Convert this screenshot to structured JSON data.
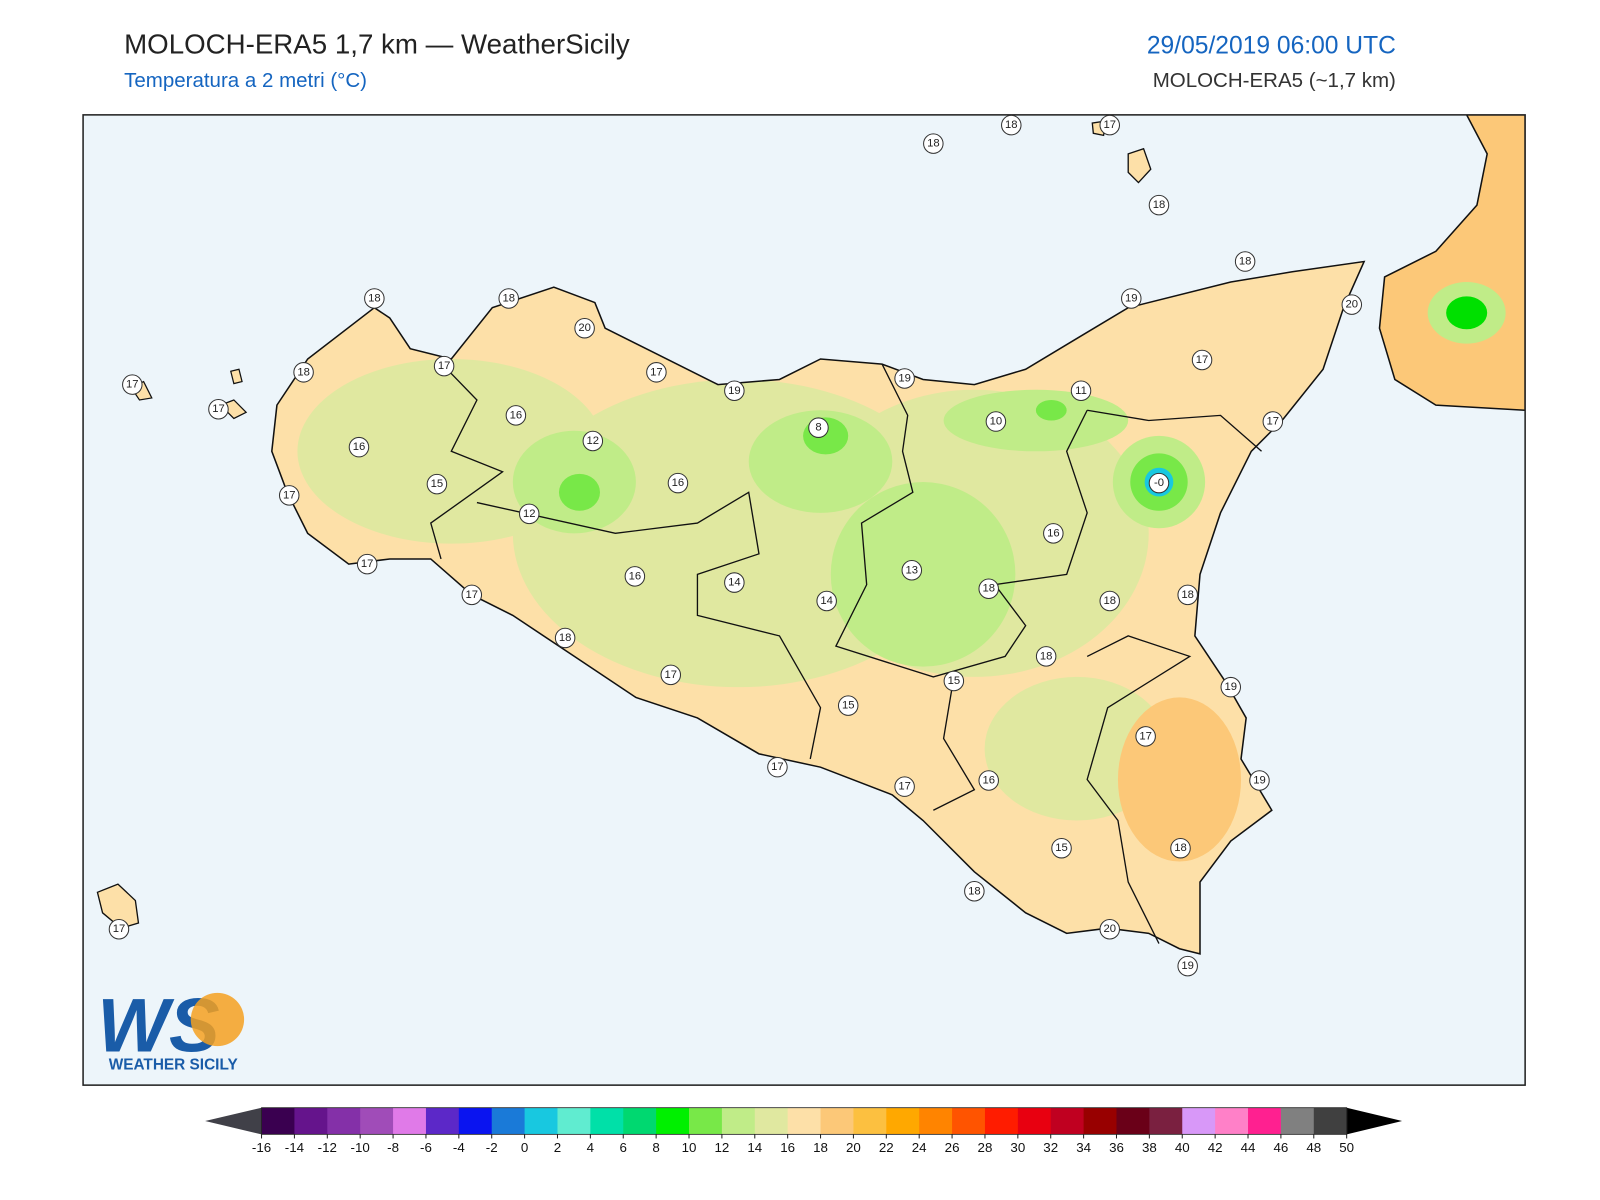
{
  "header": {
    "title": "MOLOCH-ERA5 1,7 km — WeatherSicily",
    "subtitle": "Temperatura a 2 metri (°C)",
    "datetime": "29/05/2019 06:00 UTC",
    "model": "MOLOCH-ERA5 (~1,7 km)"
  },
  "stations": [
    "18",
    "18",
    "17",
    "18",
    "18",
    "19",
    "20",
    "17",
    "17",
    "11",
    "10",
    "19",
    "8",
    "19",
    "17",
    "20",
    "18",
    "17",
    "18",
    "18",
    "17",
    "17",
    "16",
    "12",
    "16",
    "15",
    "17",
    "12",
    "16",
    "-0",
    "16",
    "13",
    "17",
    "17",
    "16",
    "14",
    "14",
    "18",
    "18",
    "18",
    "18",
    "17",
    "18",
    "15",
    "19",
    "15",
    "17",
    "17",
    "17",
    "16",
    "19",
    "15",
    "18",
    "18",
    "20",
    "19",
    "17"
  ],
  "logo": {
    "mark": "WS",
    "text": "WEATHER SICILY"
  },
  "colorbar": {
    "ticks": [
      -16,
      -14,
      -12,
      -10,
      -8,
      -6,
      -4,
      -2,
      0,
      2,
      4,
      6,
      8,
      10,
      12,
      14,
      16,
      18,
      20,
      22,
      24,
      26,
      28,
      30,
      32,
      34,
      36,
      38,
      40,
      42,
      44,
      46,
      48,
      50
    ],
    "colors": [
      "#3a0050",
      "#65148c",
      "#8430a8",
      "#a04cb8",
      "#e07ae8",
      "#5c28c8",
      "#0a14f0",
      "#1a7ad8",
      "#18c8e0",
      "#60ecd0",
      "#00e0a8",
      "#00d870",
      "#00f000",
      "#78e848",
      "#c0ec88",
      "#e0e8a0",
      "#fde0a8",
      "#fcc878",
      "#fcc040",
      "#ffa800",
      "#ff8400",
      "#ff5400",
      "#ff1c00",
      "#e80010",
      "#c00020",
      "#980000",
      "#6a0018",
      "#7a2040",
      "#d898f8",
      "#ff80c8",
      "#ff2090",
      "#808080",
      "#404040"
    ],
    "under_color": "#404048",
    "over_color": "#000000"
  }
}
